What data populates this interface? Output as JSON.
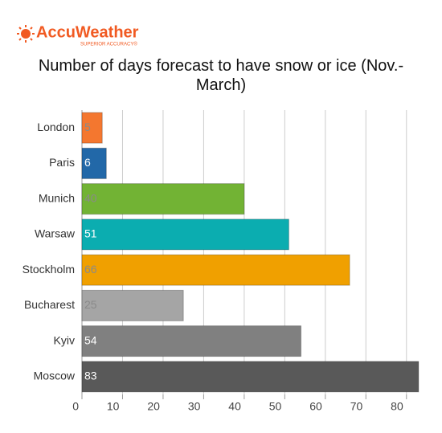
{
  "logo": {
    "name": "AccuWeather",
    "tagline": "SUPERIOR ACCURACY®"
  },
  "chart_data": {
    "type": "bar",
    "orientation": "horizontal",
    "title": "Number of days forecast to have snow or ice (Nov.-March)",
    "categories": [
      "London",
      "Paris",
      "Munich",
      "Warsaw",
      "Stockholm",
      "Bucharest",
      "Kyiv",
      "Moscow"
    ],
    "values": [
      5,
      6,
      40,
      51,
      66,
      25,
      54,
      83
    ],
    "colors": [
      "#f4772f",
      "#2268a8",
      "#72b334",
      "#0badb0",
      "#f0a000",
      "#a5a5a5",
      "#808080",
      "#595959"
    ],
    "xlim": [
      0,
      85
    ],
    "xticks": [
      0,
      10,
      20,
      30,
      40,
      50,
      60,
      70,
      80
    ],
    "grid": true
  }
}
